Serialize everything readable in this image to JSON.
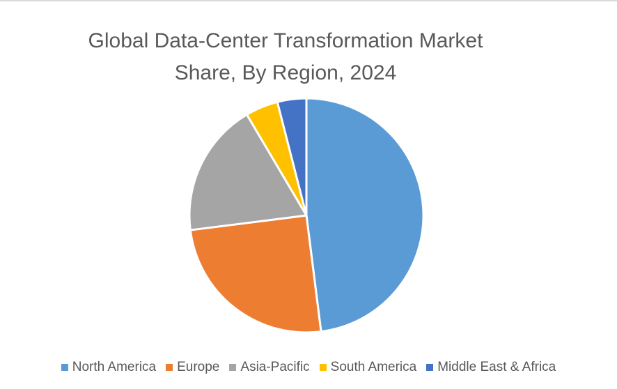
{
  "chart_data": {
    "type": "pie",
    "title": [
      "Global Data-Center Transformation Market",
      "Share, By Region, 2024"
    ],
    "categories": [
      "North America",
      "Europe",
      "Asia-Pacific",
      "South America",
      "Middle East & Africa"
    ],
    "values": [
      48,
      25,
      18.5,
      4.5,
      4
    ],
    "colors": [
      "#5b9bd5",
      "#ed7d31",
      "#a5a5a5",
      "#ffc000",
      "#4472c4"
    ],
    "legend_position": "bottom",
    "start_angle": "12 o'clock",
    "direction": "clockwise"
  }
}
